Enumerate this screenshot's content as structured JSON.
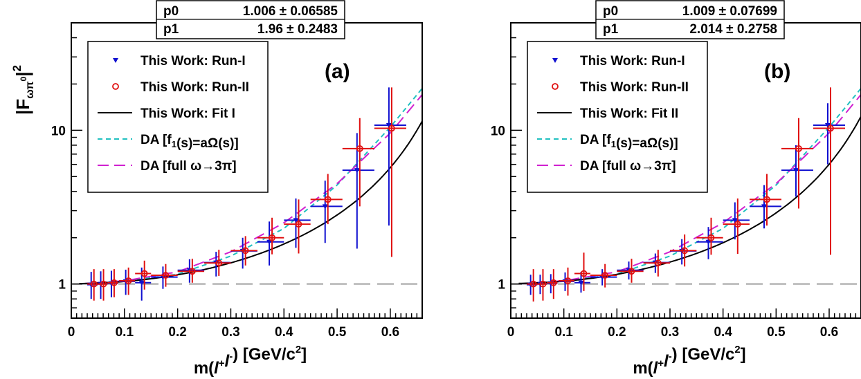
{
  "chart_data": [
    {
      "type": "scatter",
      "panel_label": "(a)",
      "xlabel": "m(l+l-)  [GeV/c2]",
      "ylabel": "|Fωπ0|2",
      "xlim": [
        0,
        0.66
      ],
      "ylim": [
        0.6,
        50
      ],
      "yscale": "log",
      "x_ticks": [
        "0",
        "0.1",
        "0.2",
        "0.3",
        "0.4",
        "0.5",
        "0.6"
      ],
      "y_ticks": [
        "1",
        "10"
      ],
      "grid": false,
      "legend_position": "top-left",
      "fit_box": {
        "rows": [
          {
            "name": "p0",
            "value": "1.006",
            "error": "0.06585"
          },
          {
            "name": "p1",
            "value": "1.96",
            "error": "0.2483"
          }
        ]
      },
      "series": [
        {
          "name": "This Work: Run-I",
          "kind": "points",
          "marker": "triangle-down",
          "color": "#1010d0",
          "x": [
            0.04,
            0.058,
            0.078,
            0.105,
            0.135,
            0.175,
            0.225,
            0.275,
            0.325,
            0.375,
            0.425,
            0.48,
            0.54,
            0.6
          ],
          "y": [
            0.99,
            1.0,
            1.01,
            1.04,
            1.02,
            1.11,
            1.23,
            1.38,
            1.64,
            1.88,
            2.6,
            3.2,
            5.5,
            10.8
          ],
          "xerr": [
            0.01,
            0.01,
            0.01,
            0.015,
            0.015,
            0.025,
            0.025,
            0.025,
            0.025,
            0.025,
            0.025,
            0.03,
            0.03,
            0.03
          ],
          "ylow": [
            0.8,
            0.8,
            0.82,
            0.85,
            0.78,
            0.93,
            1.02,
            1.12,
            1.26,
            1.32,
            1.72,
            1.85,
            1.7,
            2.4
          ],
          "yhigh": [
            1.2,
            1.21,
            1.22,
            1.24,
            1.28,
            1.3,
            1.45,
            1.62,
            2.0,
            2.55,
            3.6,
            4.7,
            9.6,
            19.0
          ]
        },
        {
          "name": "This Work: Run-II",
          "kind": "points",
          "marker": "open-circle",
          "color": "#e01010",
          "x": [
            0.04,
            0.058,
            0.078,
            0.105,
            0.135,
            0.175,
            0.225,
            0.275,
            0.325,
            0.375,
            0.425,
            0.48,
            0.54,
            0.6
          ],
          "y": [
            1.0,
            1.0,
            1.02,
            1.05,
            1.17,
            1.14,
            1.21,
            1.37,
            1.65,
            2.0,
            2.45,
            3.55,
            7.6,
            10.3
          ],
          "xerr": [
            0.01,
            0.01,
            0.01,
            0.015,
            0.015,
            0.025,
            0.025,
            0.025,
            0.025,
            0.025,
            0.025,
            0.03,
            0.03,
            0.03
          ],
          "ylow": [
            0.78,
            0.78,
            0.82,
            0.85,
            0.92,
            0.96,
            1.02,
            1.13,
            1.32,
            1.56,
            1.58,
            2.45,
            3.2,
            1.5
          ],
          "yhigh": [
            1.25,
            1.25,
            1.25,
            1.28,
            1.42,
            1.35,
            1.46,
            1.67,
            2.05,
            2.7,
            3.55,
            5.2,
            12.0,
            19.0
          ]
        },
        {
          "name": "This Work: Fit I",
          "kind": "fit",
          "p0": 1.006,
          "p1": 1.96,
          "color": "#000000",
          "dash": "solid"
        },
        {
          "name": "DA [f1(s)=aΩ(s)]",
          "kind": "curve",
          "color": "#20c0c0",
          "dash": "short",
          "x": [
            0.01,
            0.1,
            0.2,
            0.3,
            0.4,
            0.5,
            0.6,
            0.65
          ],
          "y": [
            1.0,
            1.04,
            1.16,
            1.52,
            2.3,
            4.4,
            10.5,
            17.0
          ]
        },
        {
          "name": "DA [full  ω→3π]",
          "kind": "curve",
          "color": "#d020d0",
          "dash": "long",
          "x": [
            0.01,
            0.1,
            0.2,
            0.3,
            0.4,
            0.5,
            0.6,
            0.65
          ],
          "y": [
            1.0,
            1.05,
            1.2,
            1.62,
            2.5,
            4.5,
            9.6,
            15.5
          ]
        }
      ],
      "reference_line": {
        "y": 1,
        "color": "#a0a0a0"
      }
    },
    {
      "type": "scatter",
      "panel_label": "(b)",
      "xlabel": "m(l+l-)  [GeV/c2]",
      "ylabel": "",
      "xlim": [
        0,
        0.66
      ],
      "ylim": [
        0.6,
        50
      ],
      "yscale": "log",
      "x_ticks": [
        "0",
        "0.1",
        "0.2",
        "0.3",
        "0.4",
        "0.5",
        "0.6"
      ],
      "y_ticks": [
        "1",
        "10"
      ],
      "grid": false,
      "legend_position": "top-left",
      "fit_box": {
        "rows": [
          {
            "name": "p0",
            "value": "1.009",
            "error": "0.07699"
          },
          {
            "name": "p1",
            "value": "2.014",
            "error": "0.2758"
          }
        ]
      },
      "series": [
        {
          "name": "This Work: Run-I",
          "kind": "points",
          "marker": "triangle-down",
          "color": "#1010d0",
          "x": [
            0.04,
            0.058,
            0.078,
            0.105,
            0.135,
            0.175,
            0.225,
            0.275,
            0.325,
            0.375,
            0.425,
            0.48,
            0.54,
            0.6
          ],
          "y": [
            0.99,
            1.0,
            1.01,
            1.04,
            1.02,
            1.11,
            1.23,
            1.38,
            1.64,
            1.88,
            2.6,
            3.2,
            5.5,
            10.8
          ],
          "xerr": [
            0.01,
            0.01,
            0.01,
            0.015,
            0.015,
            0.025,
            0.025,
            0.025,
            0.025,
            0.025,
            0.025,
            0.03,
            0.03,
            0.03
          ],
          "ylow": [
            0.85,
            0.86,
            0.87,
            0.9,
            0.88,
            0.98,
            1.07,
            1.18,
            1.34,
            1.45,
            1.95,
            2.3,
            3.7,
            6.0
          ],
          "yhigh": [
            1.15,
            1.15,
            1.16,
            1.19,
            1.2,
            1.25,
            1.4,
            1.58,
            1.96,
            2.35,
            3.4,
            4.4,
            8.0,
            15.0
          ]
        },
        {
          "name": "This Work: Run-II",
          "kind": "points",
          "marker": "open-circle",
          "color": "#e01010",
          "x": [
            0.04,
            0.058,
            0.078,
            0.105,
            0.135,
            0.175,
            0.225,
            0.275,
            0.325,
            0.375,
            0.425,
            0.48,
            0.54,
            0.6
          ],
          "y": [
            1.0,
            1.0,
            1.02,
            1.05,
            1.17,
            1.14,
            1.21,
            1.37,
            1.65,
            2.0,
            2.45,
            3.55,
            7.6,
            10.3
          ],
          "xerr": [
            0.01,
            0.01,
            0.01,
            0.015,
            0.015,
            0.025,
            0.025,
            0.025,
            0.025,
            0.025,
            0.025,
            0.03,
            0.03,
            0.03
          ],
          "ylow": [
            0.77,
            0.78,
            0.8,
            0.84,
            0.9,
            0.95,
            1.02,
            1.12,
            1.3,
            1.55,
            1.57,
            2.4,
            3.1,
            1.55
          ],
          "yhigh": [
            1.25,
            1.25,
            1.25,
            1.28,
            1.6,
            1.35,
            1.46,
            1.67,
            2.1,
            2.7,
            3.6,
            5.2,
            12.0,
            19.0
          ]
        },
        {
          "name": "This Work: Fit II",
          "kind": "fit",
          "p0": 1.009,
          "p1": 2.014,
          "color": "#000000",
          "dash": "solid"
        },
        {
          "name": "DA [f1(s)=aΩ(s)]",
          "kind": "curve",
          "color": "#20c0c0",
          "dash": "short",
          "x": [
            0.01,
            0.1,
            0.2,
            0.3,
            0.4,
            0.5,
            0.6,
            0.65
          ],
          "y": [
            1.0,
            1.04,
            1.16,
            1.52,
            2.3,
            4.4,
            10.5,
            17.0
          ]
        },
        {
          "name": "DA [full  ω→3π]",
          "kind": "curve",
          "color": "#d020d0",
          "dash": "long",
          "x": [
            0.01,
            0.1,
            0.2,
            0.3,
            0.4,
            0.5,
            0.6,
            0.65
          ],
          "y": [
            1.0,
            1.05,
            1.2,
            1.62,
            2.5,
            4.5,
            9.6,
            15.5
          ]
        }
      ],
      "reference_line": {
        "y": 1,
        "color": "#a0a0a0"
      }
    }
  ]
}
